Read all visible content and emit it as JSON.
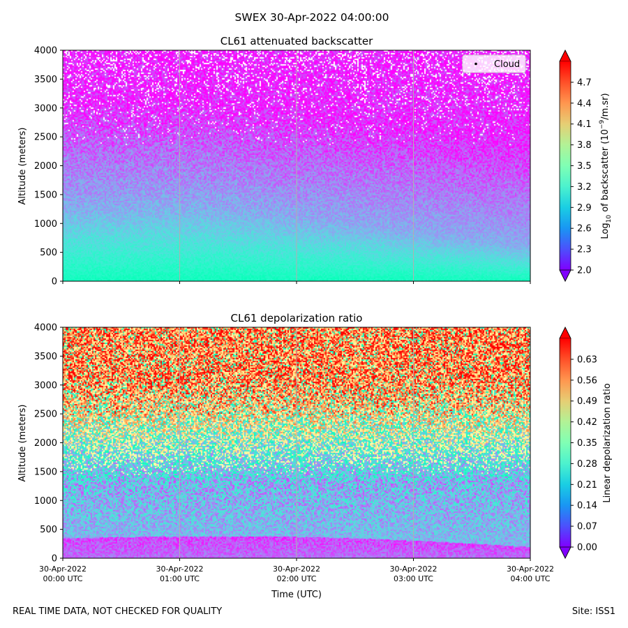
{
  "figure": {
    "suptitle": "SWEX 30-Apr-2022 04:00:00",
    "footer_left": "REAL TIME DATA, NOT CHECKED FOR QUALITY",
    "footer_right": "Site: ISS1"
  },
  "chart_data": [
    {
      "type": "heatmap",
      "title": "CL61 attenuated backscatter",
      "ylabel": "Altitude (meters)",
      "xlabel": "",
      "ylim": [
        0,
        4000
      ],
      "yticks": [
        "0",
        "500",
        "1000",
        "1500",
        "2000",
        "2500",
        "3000",
        "3500",
        "4000"
      ],
      "xlim_hours_utc": [
        0,
        4
      ],
      "xtick_hours": [
        0,
        1,
        2,
        3,
        4
      ],
      "xtick_labels_shown": false,
      "legend": [
        {
          "label": "Cloud",
          "marker": "black dot"
        }
      ],
      "legend_position": "top-right",
      "colorbar": {
        "label_prefix": "Log",
        "label_sub": "10",
        "label_mid": " of backscatter (10",
        "label_sup": "−9",
        "label_suffix": "/m.sr)",
        "range": [
          2.0,
          5.0
        ],
        "ticks": [
          "2.0",
          "2.3",
          "2.6",
          "2.9",
          "3.2",
          "3.5",
          "3.8",
          "4.1",
          "4.4",
          "4.7"
        ],
        "extend": "both",
        "colormap": "rainbow"
      },
      "profile_description": {
        "surface_value": 3.4,
        "boundary_layer_top_m_at_00utc": 1300,
        "boundary_layer_top_m_at_04utc": 600,
        "upper_value": 2.1
      }
    },
    {
      "type": "heatmap",
      "title": "CL61 depolarization ratio",
      "ylabel": "Altitude (meters)",
      "xlabel": "Time (UTC)",
      "ylim": [
        0,
        4000
      ],
      "yticks": [
        "0",
        "500",
        "1000",
        "1500",
        "2000",
        "2500",
        "3000",
        "3500",
        "4000"
      ],
      "xlim_hours_utc": [
        0,
        4
      ],
      "xtick_hours": [
        0,
        1,
        2,
        3,
        4
      ],
      "xtick_labels": [
        [
          "30-Apr-2022",
          "00:00 UTC"
        ],
        [
          "30-Apr-2022",
          "01:00 UTC"
        ],
        [
          "30-Apr-2022",
          "02:00 UTC"
        ],
        [
          "30-Apr-2022",
          "03:00 UTC"
        ],
        [
          "30-Apr-2022",
          "04:00 UTC"
        ]
      ],
      "colorbar": {
        "label": "Linear depolarization ratio",
        "range": [
          0.0,
          0.7
        ],
        "ticks": [
          "0.00",
          "0.07",
          "0.14",
          "0.21",
          "0.28",
          "0.35",
          "0.42",
          "0.49",
          "0.56",
          "0.63"
        ],
        "extend": "both",
        "colormap": "rainbow"
      },
      "profile_description": {
        "low_layer_value": 0.06,
        "mid_value": 0.18,
        "upper_value": 0.55
      }
    }
  ]
}
